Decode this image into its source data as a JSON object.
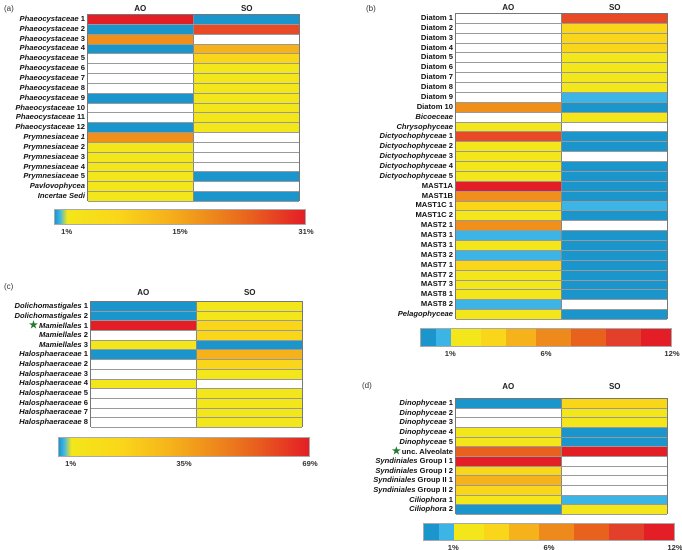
{
  "palette": {
    "B": "#1a96cc",
    "L": "#3db4e6",
    "W": "#ffffff",
    "Y": "#f3e61a",
    "Y2": "#fad61a",
    "G": "#f5b21a",
    "O": "#f0901a",
    "O2": "#e8621e",
    "R2": "#e84a25",
    "R": "#e41e26"
  },
  "chart_data": [
    {
      "type": "heatmap",
      "panel": "(a)",
      "columns": [
        "AO",
        "SO"
      ],
      "colorbar": {
        "style": "continuous",
        "ticks": [
          "1%",
          "15%",
          "31%"
        ]
      },
      "rows": [
        {
          "it": "Phaeocystaceae",
          "rm": " 1",
          "c": [
            "R",
            "B"
          ]
        },
        {
          "it": "Phaeocystaceae",
          "rm": " 2",
          "c": [
            "B",
            "R2"
          ]
        },
        {
          "it": "Phaeocystaceae",
          "rm": " 3",
          "c": [
            "O",
            "W"
          ]
        },
        {
          "it": "Phaeocystaceae",
          "rm": " 4",
          "c": [
            "B",
            "G"
          ]
        },
        {
          "it": "Phaeocystaceae",
          "rm": " 5",
          "c": [
            "W",
            "Y2"
          ]
        },
        {
          "it": "Phaeocystaceae",
          "rm": " 6",
          "c": [
            "W",
            "Y"
          ]
        },
        {
          "it": "Phaeocystaceae",
          "rm": " 7",
          "c": [
            "W",
            "Y"
          ]
        },
        {
          "it": "Phaeocystaceae",
          "rm": " 8",
          "c": [
            "W",
            "Y"
          ]
        },
        {
          "it": "Phaeocystaceae",
          "rm": " 9",
          "c": [
            "B",
            "Y"
          ]
        },
        {
          "it": "Phaeocystaceae",
          "rm": " 10",
          "c": [
            "W",
            "Y"
          ]
        },
        {
          "it": "Phaeocystaceae",
          "rm": " 11",
          "c": [
            "W",
            "Y"
          ]
        },
        {
          "it": "Phaeocystaceae",
          "rm": " 12",
          "c": [
            "B",
            "Y"
          ]
        },
        {
          "it": "Prymnesiaceae 1",
          "rm": "",
          "c": [
            "O",
            "W"
          ]
        },
        {
          "it": "Prymnesiaceae",
          "rm": " 2",
          "c": [
            "Y",
            "W"
          ]
        },
        {
          "it": "Prymnesiaceae",
          "rm": " 3",
          "c": [
            "Y",
            "W"
          ]
        },
        {
          "it": "Prymnesiaceae",
          "rm": " 4",
          "c": [
            "Y",
            "W"
          ]
        },
        {
          "it": "Prymnesiaceae",
          "rm": " 5",
          "c": [
            "Y",
            "B"
          ]
        },
        {
          "it": "Pavlovophycea",
          "rm": "",
          "c": [
            "Y",
            "W"
          ]
        },
        {
          "it": "Incertae Sedi",
          "rm": "",
          "c": [
            "Y",
            "B"
          ]
        }
      ]
    },
    {
      "type": "heatmap",
      "panel": "(b)",
      "columns": [
        "AO",
        "SO"
      ],
      "colorbar": {
        "style": "stepped",
        "ticks": [
          "1%",
          "6%",
          "12%"
        ]
      },
      "rows": [
        {
          "it": "",
          "rm": "Diatom 1",
          "c": [
            "W",
            "R2"
          ]
        },
        {
          "it": "",
          "rm": "Diatom 2",
          "c": [
            "W",
            "Y2"
          ]
        },
        {
          "it": "",
          "rm": "Diatom 3",
          "c": [
            "W",
            "Y2"
          ]
        },
        {
          "it": "",
          "rm": "Diatom 4",
          "c": [
            "W",
            "Y2"
          ]
        },
        {
          "it": "",
          "rm": "Diatom 5",
          "c": [
            "W",
            "Y"
          ]
        },
        {
          "it": "",
          "rm": "Diatom 6",
          "c": [
            "W",
            "Y"
          ]
        },
        {
          "it": "",
          "rm": "Diatom 7",
          "c": [
            "W",
            "Y"
          ]
        },
        {
          "it": "",
          "rm": "Diatom 8",
          "c": [
            "W",
            "Y"
          ]
        },
        {
          "it": "",
          "rm": "Diatom 9",
          "c": [
            "W",
            "L"
          ]
        },
        {
          "it": "",
          "rm": "Diatom 10",
          "c": [
            "O",
            "B"
          ]
        },
        {
          "it": "Bicoeceae",
          "rm": "",
          "c": [
            "W",
            "Y"
          ]
        },
        {
          "it": "Chrysophyceae",
          "rm": "",
          "c": [
            "Y",
            "W"
          ]
        },
        {
          "it": "Dictyochophyceae",
          "rm": " 1",
          "c": [
            "R2",
            "B"
          ]
        },
        {
          "it": "Dictyochophyceae",
          "rm": " 2",
          "c": [
            "Y",
            "B"
          ]
        },
        {
          "it": "Dictyochophyceae",
          "rm": " 3",
          "c": [
            "Y",
            "W"
          ]
        },
        {
          "it": "Dictyochophyceae",
          "rm": " 4",
          "c": [
            "Y",
            "B"
          ]
        },
        {
          "it": "Dictyochophyceae",
          "rm": " 5",
          "c": [
            "Y",
            "B"
          ]
        },
        {
          "it": "",
          "rm": "MAST1A",
          "c": [
            "R",
            "B"
          ]
        },
        {
          "it": "",
          "rm": "MAST1B",
          "c": [
            "O",
            "B"
          ]
        },
        {
          "it": "",
          "rm": "MAST1C 1",
          "c": [
            "Y2",
            "L"
          ]
        },
        {
          "it": "",
          "rm": "MAST1C 2",
          "c": [
            "Y",
            "B"
          ]
        },
        {
          "it": "",
          "rm": "MAST2 1",
          "c": [
            "O",
            "W"
          ]
        },
        {
          "it": "",
          "rm": "MAST3 1",
          "c": [
            "L",
            "B"
          ]
        },
        {
          "it": "",
          "rm": "MAST3 1",
          "c": [
            "Y",
            "B"
          ]
        },
        {
          "it": "",
          "rm": "MAST3 2",
          "c": [
            "L",
            "B"
          ]
        },
        {
          "it": "",
          "rm": "MAST7 1",
          "c": [
            "Y2",
            "B"
          ]
        },
        {
          "it": "",
          "rm": "MAST7 2",
          "c": [
            "Y",
            "B"
          ]
        },
        {
          "it": "",
          "rm": "MAST7 3",
          "c": [
            "Y",
            "B"
          ]
        },
        {
          "it": "",
          "rm": "MAST8 1",
          "c": [
            "Y",
            "B"
          ]
        },
        {
          "it": "",
          "rm": "MAST8 2",
          "c": [
            "L",
            "W"
          ]
        },
        {
          "it": "Pelagophyceae",
          "rm": "",
          "c": [
            "Y",
            "B"
          ]
        }
      ]
    },
    {
      "type": "heatmap",
      "panel": "(c)",
      "columns": [
        "AO",
        "SO"
      ],
      "colorbar": {
        "style": "continuous",
        "ticks": [
          "1%",
          "35%",
          "69%"
        ]
      },
      "rows": [
        {
          "it": "Dolichomastigales",
          "rm": " 1",
          "c": [
            "B",
            "Y"
          ]
        },
        {
          "it": "Dolichomastigales",
          "rm": " 2",
          "c": [
            "B",
            "Y"
          ]
        },
        {
          "it": "Mamiellales",
          "rm": "  1",
          "c": [
            "R",
            "Y2"
          ],
          "star": true
        },
        {
          "it": "Mamiellales",
          "rm": "  2",
          "c": [
            "W",
            "Y2"
          ]
        },
        {
          "it": "Mamiellales",
          "rm": "  3",
          "c": [
            "Y",
            "B"
          ]
        },
        {
          "it": "Halosphaeraceae",
          "rm": " 1",
          "c": [
            "B",
            "G"
          ]
        },
        {
          "it": "Halosphaeraceae",
          "rm": " 2",
          "c": [
            "W",
            "Y2"
          ]
        },
        {
          "it": "Halosphaeraceae",
          "rm": " 3",
          "c": [
            "W",
            "Y"
          ]
        },
        {
          "it": "Halosphaeraceae",
          "rm": " 4",
          "c": [
            "Y",
            "W"
          ]
        },
        {
          "it": "Halosphaeraceae",
          "rm": " 5",
          "c": [
            "W",
            "Y"
          ]
        },
        {
          "it": "Halosphaeraceae",
          "rm": " 6",
          "c": [
            "W",
            "Y"
          ]
        },
        {
          "it": "Halosphaeraceae",
          "rm": " 7",
          "c": [
            "W",
            "Y"
          ]
        },
        {
          "it": "Halosphaeraceae",
          "rm": " 8",
          "c": [
            "W",
            "Y"
          ]
        }
      ]
    },
    {
      "type": "heatmap",
      "panel": "(d)",
      "columns": [
        "AO",
        "SO"
      ],
      "colorbar": {
        "style": "stepped",
        "ticks": [
          "1%",
          "6%",
          "12%"
        ]
      },
      "rows": [
        {
          "it": "Dinophyceae",
          "rm": " 1",
          "c": [
            "B",
            "Y2"
          ]
        },
        {
          "it": "Dinophyceae",
          "rm": " 2",
          "c": [
            "W",
            "Y"
          ]
        },
        {
          "it": "Dinophyceae",
          "rm": " 3",
          "c": [
            "W",
            "Y"
          ]
        },
        {
          "it": "Dinophyceae",
          "rm": " 4",
          "c": [
            "Y",
            "B"
          ]
        },
        {
          "it": "Dinophyceae",
          "rm": " 5",
          "c": [
            "Y",
            "B"
          ]
        },
        {
          "it": "",
          "rm": "unc. Alveolate",
          "c": [
            "O2",
            "R"
          ],
          "star": true
        },
        {
          "it": "Syndiniales",
          "rm": " Group I 1",
          "c": [
            "R",
            "W"
          ]
        },
        {
          "it": "Syndiniales",
          "rm": " Group I 2",
          "c": [
            "Y2",
            "W"
          ]
        },
        {
          "it": "Syndiniales",
          "rm": " Group II 1",
          "c": [
            "G",
            "W"
          ]
        },
        {
          "it": "Syndiniales",
          "rm": " Group II 2",
          "c": [
            "Y2",
            "W"
          ]
        },
        {
          "it": "Ciliophora",
          "rm": " 1",
          "c": [
            "Y",
            "L"
          ]
        },
        {
          "it": "Ciliophora",
          "rm": " 2",
          "c": [
            "B",
            "Y"
          ]
        }
      ]
    }
  ]
}
